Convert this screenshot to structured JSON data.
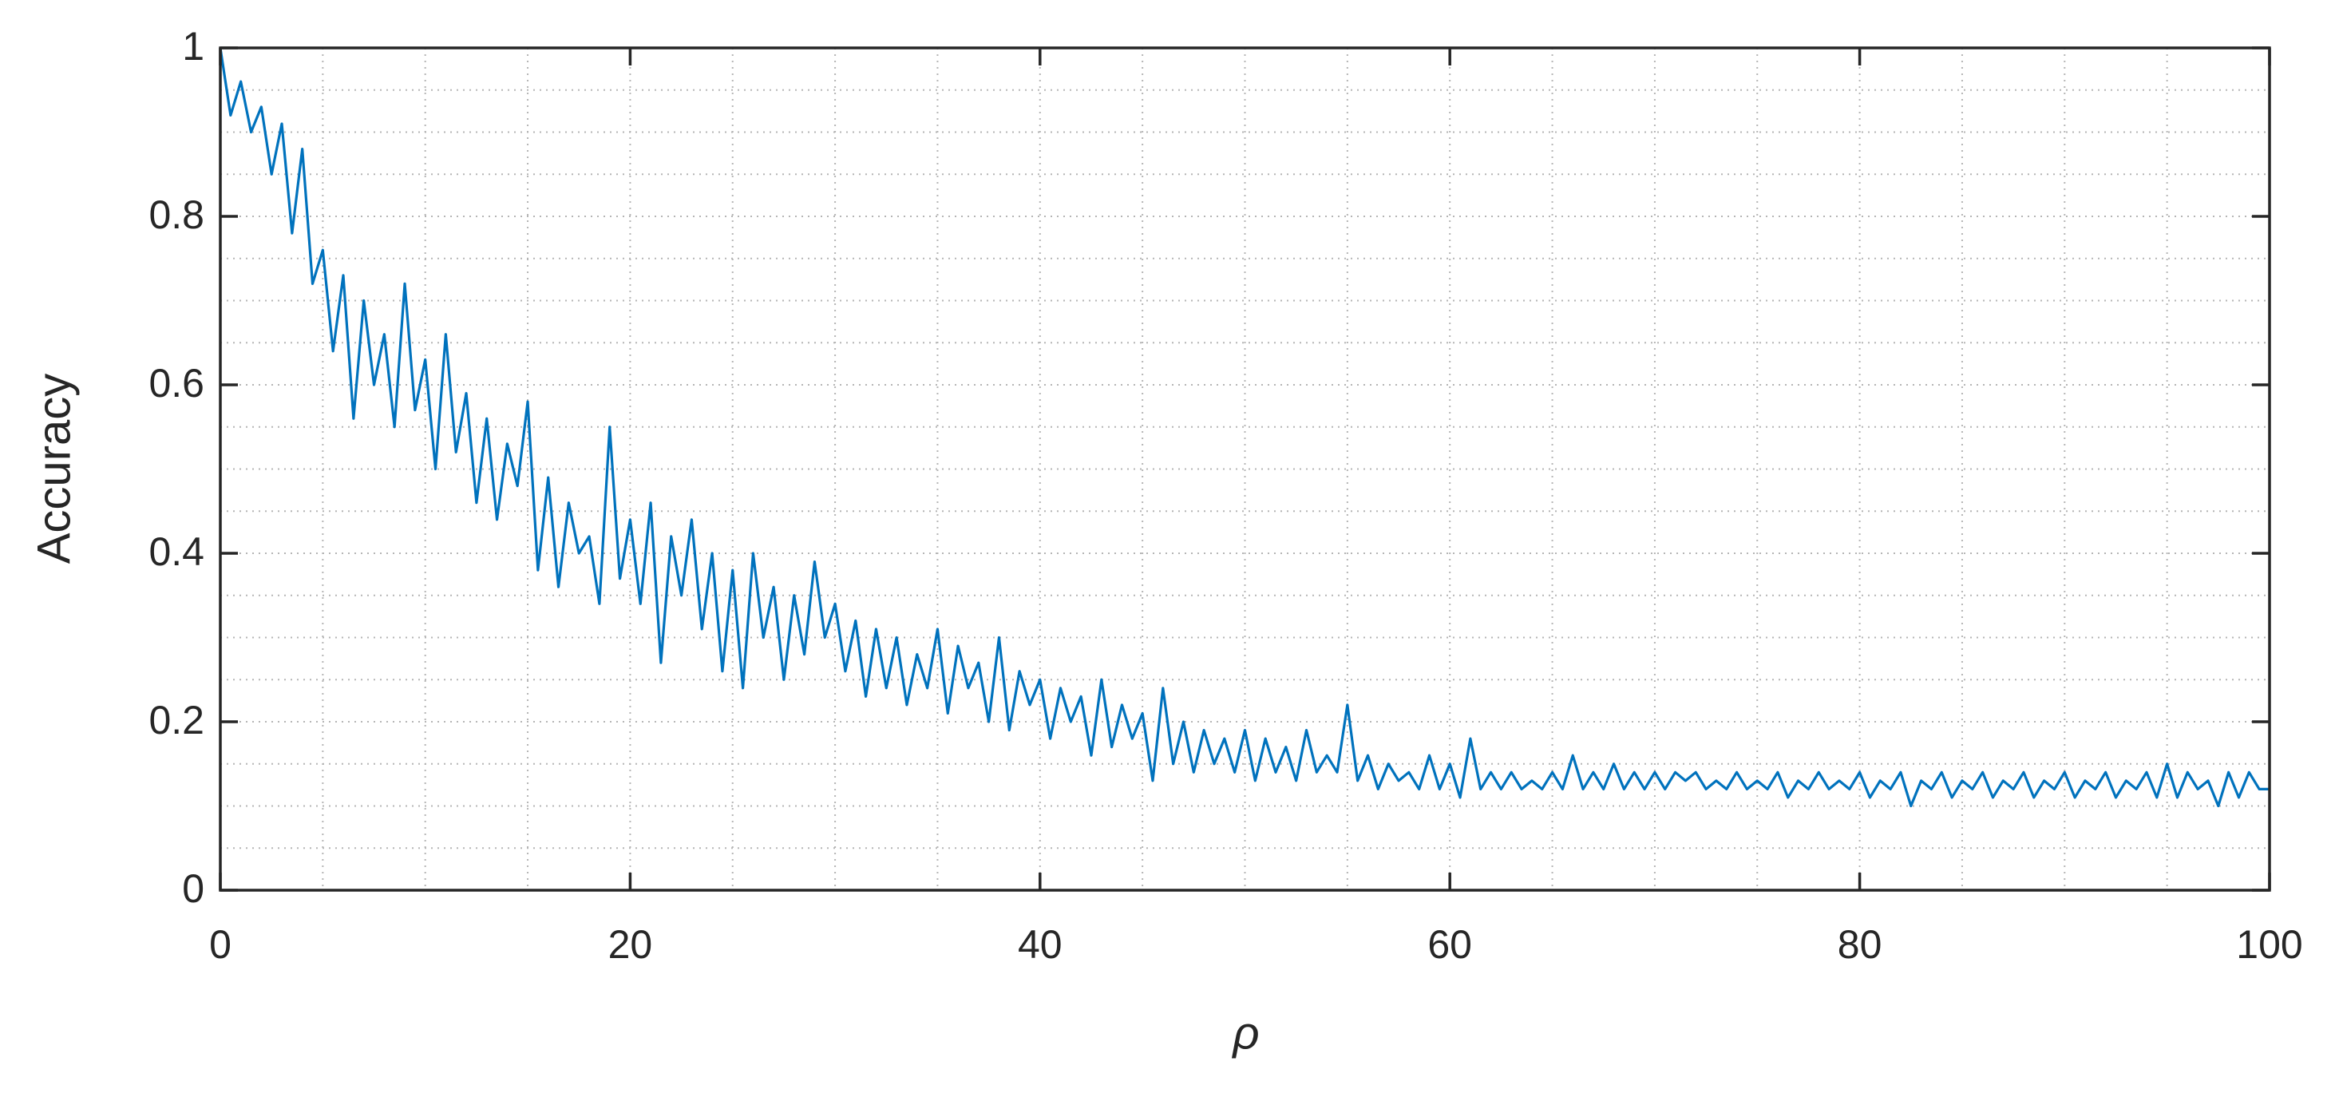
{
  "chart_data": {
    "type": "line",
    "xlabel": "ρ",
    "ylabel": "Accuracy",
    "xlim": [
      0,
      100
    ],
    "ylim": [
      0,
      1
    ],
    "xticks": [
      0,
      20,
      40,
      60,
      80,
      100
    ],
    "yticks": [
      0,
      0.2,
      0.4,
      0.6,
      0.8,
      1
    ],
    "xminorticks": [
      5,
      10,
      15,
      25,
      30,
      35,
      45,
      50,
      55,
      65,
      70,
      75,
      85,
      90,
      95
    ],
    "yminorticks": [
      0.05,
      0.1,
      0.15,
      0.25,
      0.3,
      0.35,
      0.45,
      0.5,
      0.55,
      0.65,
      0.7,
      0.75,
      0.85,
      0.9,
      0.95
    ],
    "grid": true,
    "minor_grid": true,
    "x": [
      0,
      0.5,
      1,
      1.5,
      2,
      2.5,
      3,
      3.5,
      4,
      4.5,
      5,
      5.5,
      6,
      6.5,
      7,
      7.5,
      8,
      8.5,
      9,
      9.5,
      10,
      10.5,
      11,
      11.5,
      12,
      12.5,
      13,
      13.5,
      14,
      14.5,
      15,
      15.5,
      16,
      16.5,
      17,
      17.5,
      18,
      18.5,
      19,
      19.5,
      20,
      20.5,
      21,
      21.5,
      22,
      22.5,
      23,
      23.5,
      24,
      24.5,
      25,
      25.5,
      26,
      26.5,
      27,
      27.5,
      28,
      28.5,
      29,
      29.5,
      30,
      30.5,
      31,
      31.5,
      32,
      32.5,
      33,
      33.5,
      34,
      34.5,
      35,
      35.5,
      36,
      36.5,
      37,
      37.5,
      38,
      38.5,
      39,
      39.5,
      40,
      40.5,
      41,
      41.5,
      42,
      42.5,
      43,
      43.5,
      44,
      44.5,
      45,
      45.5,
      46,
      46.5,
      47,
      47.5,
      48,
      48.5,
      49,
      49.5,
      50,
      50.5,
      51,
      51.5,
      52,
      52.5,
      53,
      53.5,
      54,
      54.5,
      55,
      55.5,
      56,
      56.5,
      57,
      57.5,
      58,
      58.5,
      59,
      59.5,
      60,
      60.5,
      61,
      61.5,
      62,
      62.5,
      63,
      63.5,
      64,
      64.5,
      65,
      65.5,
      66,
      66.5,
      67,
      67.5,
      68,
      68.5,
      69,
      69.5,
      70,
      70.5,
      71,
      71.5,
      72,
      72.5,
      73,
      73.5,
      74,
      74.5,
      75,
      75.5,
      76,
      76.5,
      77,
      77.5,
      78,
      78.5,
      79,
      79.5,
      80,
      80.5,
      81,
      81.5,
      82,
      82.5,
      83,
      83.5,
      84,
      84.5,
      85,
      85.5,
      86,
      86.5,
      87,
      87.5,
      88,
      88.5,
      89,
      89.5,
      90,
      90.5,
      91,
      91.5,
      92,
      92.5,
      93,
      93.5,
      94,
      94.5,
      95,
      95.5,
      96,
      96.5,
      97,
      97.5,
      98,
      98.5,
      99,
      99.5,
      100
    ],
    "series": [
      {
        "color": "#0072bd",
        "values": [
          1.0,
          0.92,
          0.96,
          0.9,
          0.93,
          0.85,
          0.91,
          0.78,
          0.88,
          0.72,
          0.76,
          0.64,
          0.73,
          0.56,
          0.7,
          0.6,
          0.66,
          0.55,
          0.72,
          0.57,
          0.63,
          0.5,
          0.66,
          0.52,
          0.59,
          0.46,
          0.56,
          0.44,
          0.53,
          0.48,
          0.58,
          0.38,
          0.49,
          0.36,
          0.46,
          0.4,
          0.42,
          0.34,
          0.55,
          0.37,
          0.44,
          0.34,
          0.46,
          0.27,
          0.42,
          0.35,
          0.44,
          0.31,
          0.4,
          0.26,
          0.38,
          0.24,
          0.4,
          0.3,
          0.36,
          0.25,
          0.35,
          0.28,
          0.39,
          0.3,
          0.34,
          0.26,
          0.32,
          0.23,
          0.31,
          0.24,
          0.3,
          0.22,
          0.28,
          0.24,
          0.31,
          0.21,
          0.29,
          0.24,
          0.27,
          0.2,
          0.3,
          0.19,
          0.26,
          0.22,
          0.25,
          0.18,
          0.24,
          0.2,
          0.23,
          0.16,
          0.25,
          0.17,
          0.22,
          0.18,
          0.21,
          0.13,
          0.24,
          0.15,
          0.2,
          0.14,
          0.19,
          0.15,
          0.18,
          0.14,
          0.19,
          0.13,
          0.18,
          0.14,
          0.17,
          0.13,
          0.19,
          0.14,
          0.16,
          0.14,
          0.22,
          0.13,
          0.16,
          0.12,
          0.15,
          0.13,
          0.14,
          0.12,
          0.16,
          0.12,
          0.15,
          0.11,
          0.18,
          0.12,
          0.14,
          0.12,
          0.14,
          0.12,
          0.13,
          0.12,
          0.14,
          0.12,
          0.16,
          0.12,
          0.14,
          0.12,
          0.15,
          0.12,
          0.14,
          0.12,
          0.14,
          0.12,
          0.14,
          0.13,
          0.14,
          0.12,
          0.13,
          0.12,
          0.14,
          0.12,
          0.13,
          0.12,
          0.14,
          0.11,
          0.13,
          0.12,
          0.14,
          0.12,
          0.13,
          0.12,
          0.14,
          0.11,
          0.13,
          0.12,
          0.14,
          0.1,
          0.13,
          0.12,
          0.14,
          0.11,
          0.13,
          0.12,
          0.14,
          0.11,
          0.13,
          0.12,
          0.14,
          0.11,
          0.13,
          0.12,
          0.14,
          0.11,
          0.13,
          0.12,
          0.14,
          0.11,
          0.13,
          0.12,
          0.14,
          0.11,
          0.15,
          0.11,
          0.14,
          0.12,
          0.13,
          0.1,
          0.14,
          0.11,
          0.14,
          0.12,
          0.12
        ]
      }
    ]
  }
}
